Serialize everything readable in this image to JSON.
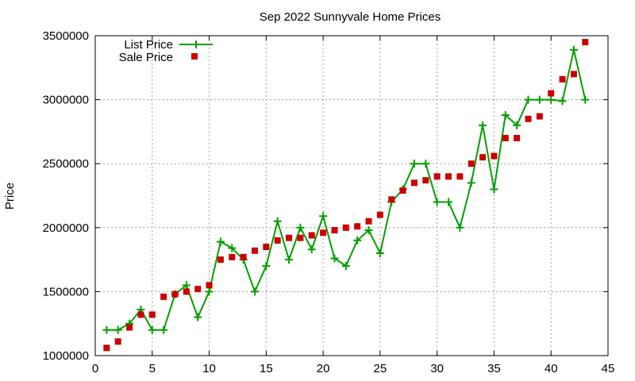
{
  "chart_data": {
    "type": "line",
    "title": "Sep 2022 Sunnyvale Home Prices",
    "xlabel": "",
    "ylabel": "Price",
    "xlim": [
      0,
      45
    ],
    "ylim": [
      1000000,
      3500000
    ],
    "xticks": [
      0,
      5,
      10,
      15,
      20,
      25,
      30,
      35,
      40,
      45
    ],
    "yticks": [
      1000000,
      1500000,
      2000000,
      2500000,
      3000000,
      3500000
    ],
    "grid": true,
    "legend_position": "top-left",
    "x": [
      1,
      2,
      3,
      4,
      5,
      6,
      7,
      8,
      9,
      10,
      11,
      12,
      13,
      14,
      15,
      16,
      17,
      18,
      19,
      20,
      21,
      22,
      23,
      24,
      25,
      26,
      27,
      28,
      29,
      30,
      31,
      32,
      33,
      34,
      35,
      36,
      37,
      38,
      39,
      40,
      41,
      42,
      43
    ],
    "series": [
      {
        "name": "List Price",
        "style": "linespoints",
        "color": "#00a000",
        "values": [
          1200000,
          1200000,
          1250000,
          1360000,
          1200000,
          1200000,
          1480000,
          1550000,
          1300000,
          1500000,
          1890000,
          1840000,
          1750000,
          1500000,
          1700000,
          2050000,
          1750000,
          2000000,
          1830000,
          2090000,
          1760000,
          1700000,
          1900000,
          1980000,
          1800000,
          2200000,
          2300000,
          2500000,
          2500000,
          2200000,
          2200000,
          2000000,
          2350000,
          2800000,
          2300000,
          2880000,
          2800000,
          3000000,
          3000000,
          3000000,
          2990000,
          3390000,
          3000000
        ]
      },
      {
        "name": "Sale Price",
        "style": "points",
        "color": "#cc0000",
        "values": [
          1060000,
          1110000,
          1220000,
          1320000,
          1320000,
          1460000,
          1480000,
          1500000,
          1520000,
          1550000,
          1750000,
          1770000,
          1770000,
          1820000,
          1850000,
          1900000,
          1920000,
          1920000,
          1940000,
          1960000,
          1980000,
          2000000,
          2010000,
          2050000,
          2100000,
          2220000,
          2290000,
          2350000,
          2370000,
          2400000,
          2400000,
          2400000,
          2500000,
          2550000,
          2560000,
          2700000,
          2700000,
          2850000,
          2870000,
          3050000,
          3160000,
          3200000,
          3450000
        ]
      }
    ]
  }
}
